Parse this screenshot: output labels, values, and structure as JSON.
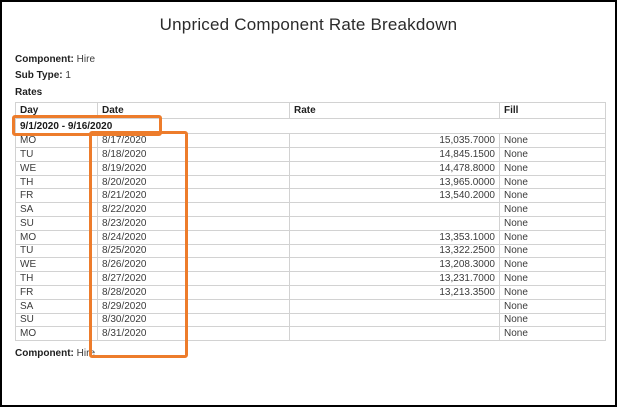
{
  "title": "Unpriced Component Rate Breakdown",
  "meta": {
    "component_label": "Component:",
    "component_value": "Hire",
    "subtype_label": "Sub Type:",
    "subtype_value": "1",
    "rates_label": "Rates"
  },
  "table": {
    "columns": {
      "day": "Day",
      "date": "Date",
      "rate": "Rate",
      "fill": "Fill"
    },
    "group_row": "9/1/2020 - 9/16/2020",
    "rows": [
      {
        "day": "MO",
        "date": "8/17/2020",
        "rate": "15,035.7000",
        "fill": "None"
      },
      {
        "day": "TU",
        "date": "8/18/2020",
        "rate": "14,845.1500",
        "fill": "None"
      },
      {
        "day": "WE",
        "date": "8/19/2020",
        "rate": "14,478.8000",
        "fill": "None"
      },
      {
        "day": "TH",
        "date": "8/20/2020",
        "rate": "13,965.0000",
        "fill": "None"
      },
      {
        "day": "FR",
        "date": "8/21/2020",
        "rate": "13,540.2000",
        "fill": "None"
      },
      {
        "day": "SA",
        "date": "8/22/2020",
        "rate": "",
        "fill": "None"
      },
      {
        "day": "SU",
        "date": "8/23/2020",
        "rate": "",
        "fill": "None"
      },
      {
        "day": "MO",
        "date": "8/24/2020",
        "rate": "13,353.1000",
        "fill": "None"
      },
      {
        "day": "TU",
        "date": "8/25/2020",
        "rate": "13,322.2500",
        "fill": "None"
      },
      {
        "day": "WE",
        "date": "8/26/2020",
        "rate": "13,208.3000",
        "fill": "None"
      },
      {
        "day": "TH",
        "date": "8/27/2020",
        "rate": "13,231.7000",
        "fill": "None"
      },
      {
        "day": "FR",
        "date": "8/28/2020",
        "rate": "13,213.3500",
        "fill": "None"
      },
      {
        "day": "SA",
        "date": "8/29/2020",
        "rate": "",
        "fill": "None"
      },
      {
        "day": "SU",
        "date": "8/30/2020",
        "rate": "",
        "fill": "None"
      },
      {
        "day": "MO",
        "date": "8/31/2020",
        "rate": "",
        "fill": "None"
      }
    ]
  },
  "footer": {
    "component_label": "Component:",
    "component_value": "Hire"
  },
  "colors": {
    "annotation_highlight": "#ED7C2B",
    "table_grid": "#D2D2D2",
    "text": "#3B3B3B",
    "frame_border": "#000000"
  }
}
